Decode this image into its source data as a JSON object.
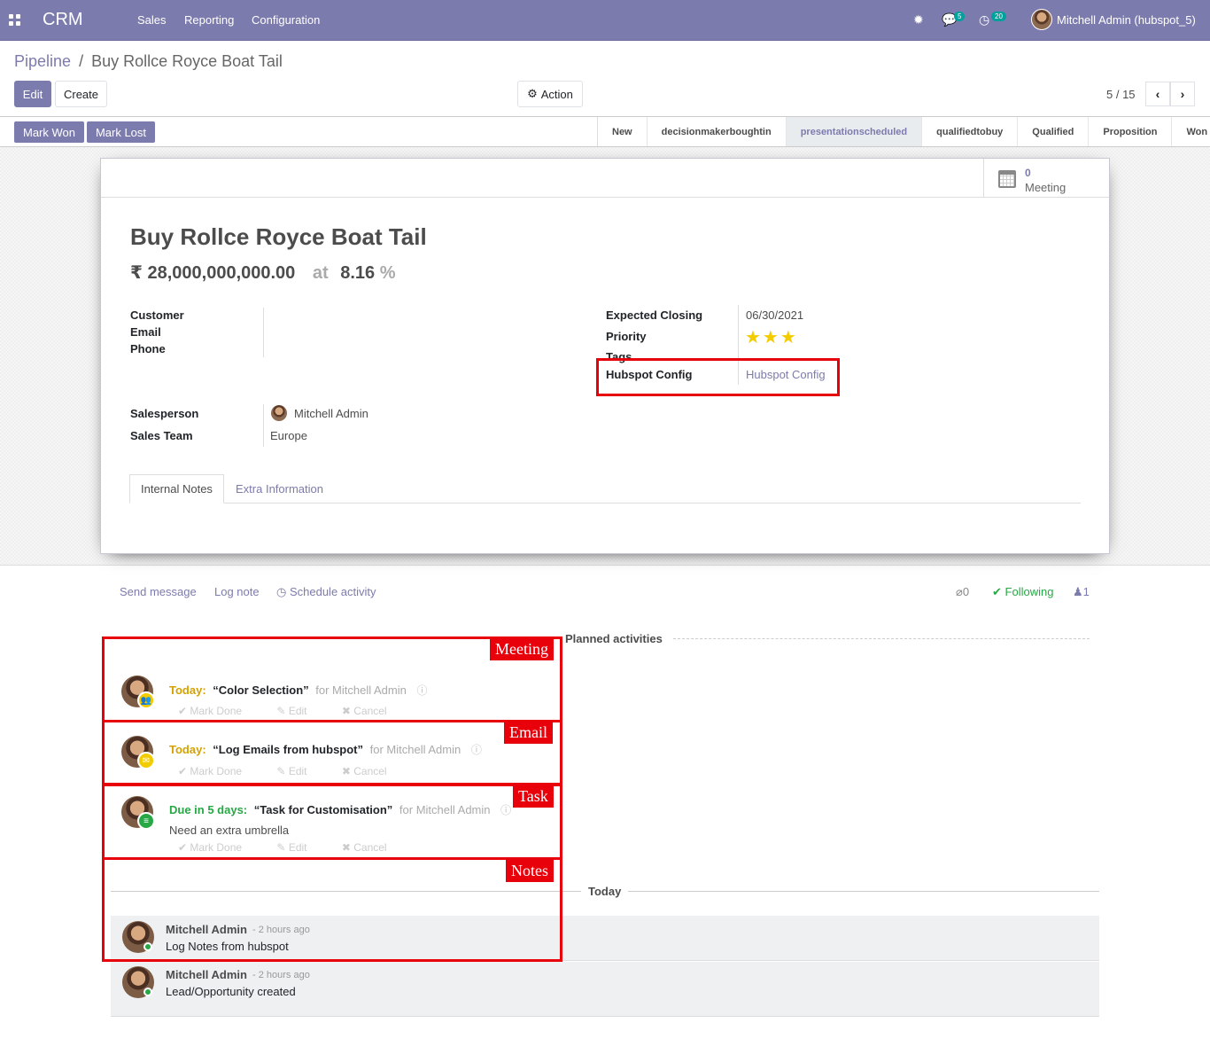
{
  "topnav": {
    "brand": "CRM",
    "menu": [
      "Sales",
      "Reporting",
      "Configuration"
    ],
    "messages_count": "5",
    "activities_count": "20",
    "user": "Mitchell Admin (hubspot_5)",
    "icons": [
      "apps-icon",
      "bug-icon",
      "messages-icon",
      "activity-clock-icon"
    ]
  },
  "control": {
    "breadcrumb_parent": "Pipeline",
    "breadcrumb_sep": "/",
    "breadcrumb_current": "Buy Rollce Royce Boat Tail",
    "edit_label": "Edit",
    "create_label": "Create",
    "action_label": "Action",
    "pager": "5 / 15"
  },
  "statusbar": {
    "mark_won": "Mark Won",
    "mark_lost": "Mark Lost",
    "stages": [
      "New",
      "decisionmakerboughtin",
      "presentationscheduled",
      "qualifiedtobuy",
      "Qualified",
      "Proposition",
      "Won"
    ],
    "active_stage": "presentationscheduled"
  },
  "sheet": {
    "meeting_count": "0",
    "meeting_label": "Meeting",
    "title": "Buy Rollce Royce Boat Tail",
    "revenue": "₹ 28,000,000,000.00",
    "at": "at",
    "probability": "8.16",
    "percent": "%",
    "labels": {
      "customer": "Customer",
      "email": "Email",
      "phone": "Phone",
      "salesperson": "Salesperson",
      "sales_team": "Sales Team",
      "expected_closing": "Expected Closing",
      "priority": "Priority",
      "tags": "Tags",
      "hubspot_config": "Hubspot Config"
    },
    "values": {
      "salesperson": "Mitchell Admin",
      "sales_team": "Europe",
      "expected_closing": "06/30/2021",
      "hubspot_config": "Hubspot Config",
      "priority_stars": "★★★"
    },
    "tabs": [
      "Internal Notes",
      "Extra Information"
    ]
  },
  "chatter": {
    "send_message": "Send message",
    "log_note": "Log note",
    "schedule_activity": "Schedule activity",
    "attachments": "0",
    "following": "Following",
    "followers": "1",
    "planned_label": "Planned activities",
    "today_label": "Today",
    "activities": [
      {
        "when": "Today:",
        "summary": "“Color Selection”",
        "for": "for Mitchell Admin",
        "note": "",
        "type": "meeting"
      },
      {
        "when": "Today:",
        "summary": "“Log Emails from hubspot”",
        "for": "for Mitchell Admin",
        "note": "",
        "type": "email"
      },
      {
        "when": "Due in 5 days:",
        "summary": "“Task for Customisation”",
        "for": "for Mitchell Admin",
        "note": "Need an extra umbrella",
        "type": "task"
      }
    ],
    "activity_actions": {
      "mark_done": "Mark Done",
      "edit": "Edit",
      "cancel": "Cancel"
    },
    "messages": [
      {
        "author": "Mitchell Admin",
        "date": "- 2 hours ago",
        "body": "Log Notes from hubspot"
      },
      {
        "author": "Mitchell Admin",
        "date": "- 2 hours ago",
        "body": "Lead/Opportunity created"
      }
    ]
  },
  "annotations": {
    "meeting": "Meeting",
    "email": "Email",
    "task": "Task",
    "notes": "Notes"
  },
  "colors": {
    "brand": "#7c7bad",
    "annotation_red": "#e8000b",
    "star": "#f3cc00",
    "today": "#d4a200",
    "due": "#28a745"
  }
}
